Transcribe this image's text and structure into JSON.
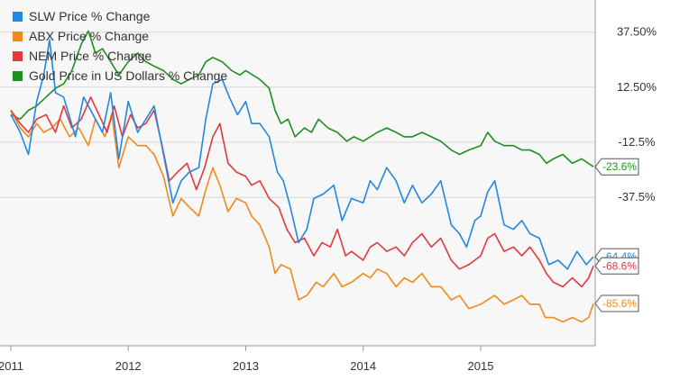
{
  "chart_data": {
    "type": "line",
    "title": "",
    "xlabel": "",
    "ylabel": "",
    "xlim": [
      2011.0,
      2015.96
    ],
    "ylim": [
      -104,
      50
    ],
    "x_ticks": [
      {
        "value": 2011,
        "label": "2011"
      },
      {
        "value": 2012,
        "label": "2012"
      },
      {
        "value": 2013,
        "label": "2013"
      },
      {
        "value": 2014,
        "label": "2014"
      },
      {
        "value": 2015,
        "label": "2015"
      }
    ],
    "y_ticks": [
      {
        "value": 37.5,
        "label": "37.50%"
      },
      {
        "value": 12.5,
        "label": "12.50%"
      },
      {
        "value": -12.5,
        "label": "-12.5%"
      },
      {
        "value": -37.5,
        "label": "-37.5%"
      }
    ],
    "grid": "horizontal",
    "legend_position": "top-left",
    "series": [
      {
        "name": "SLW Price % Change",
        "color": "#2288e0",
        "end_label": "-64.4%",
        "points": [
          [
            2011.0,
            0
          ],
          [
            2011.08,
            -8
          ],
          [
            2011.15,
            -18
          ],
          [
            2011.22,
            6
          ],
          [
            2011.28,
            18
          ],
          [
            2011.33,
            34
          ],
          [
            2011.38,
            10
          ],
          [
            2011.45,
            8
          ],
          [
            2011.55,
            -10
          ],
          [
            2011.62,
            8
          ],
          [
            2011.7,
            0
          ],
          [
            2011.78,
            -8
          ],
          [
            2011.85,
            10
          ],
          [
            2011.92,
            -20
          ],
          [
            2012.0,
            6
          ],
          [
            2012.08,
            -8
          ],
          [
            2012.15,
            -2
          ],
          [
            2012.22,
            4
          ],
          [
            2012.3,
            -18
          ],
          [
            2012.38,
            -40
          ],
          [
            2012.45,
            -30
          ],
          [
            2012.52,
            -26
          ],
          [
            2012.6,
            -24
          ],
          [
            2012.66,
            -2
          ],
          [
            2012.72,
            14
          ],
          [
            2012.8,
            16
          ],
          [
            2012.86,
            8
          ],
          [
            2012.93,
            0
          ],
          [
            2013.0,
            6
          ],
          [
            2013.05,
            -4
          ],
          [
            2013.12,
            -4
          ],
          [
            2013.2,
            -10
          ],
          [
            2013.27,
            -26
          ],
          [
            2013.32,
            -30
          ],
          [
            2013.38,
            -42
          ],
          [
            2013.45,
            -58
          ],
          [
            2013.52,
            -52
          ],
          [
            2013.58,
            -38
          ],
          [
            2013.66,
            -36
          ],
          [
            2013.75,
            -32
          ],
          [
            2013.82,
            -48
          ],
          [
            2013.9,
            -38
          ],
          [
            2014.0,
            -40
          ],
          [
            2014.06,
            -30
          ],
          [
            2014.12,
            -34
          ],
          [
            2014.2,
            -24
          ],
          [
            2014.28,
            -30
          ],
          [
            2014.35,
            -40
          ],
          [
            2014.42,
            -32
          ],
          [
            2014.5,
            -40
          ],
          [
            2014.58,
            -36
          ],
          [
            2014.66,
            -30
          ],
          [
            2014.75,
            -50
          ],
          [
            2014.82,
            -54
          ],
          [
            2014.88,
            -60
          ],
          [
            2014.95,
            -48
          ],
          [
            2015.0,
            -46
          ],
          [
            2015.06,
            -35
          ],
          [
            2015.12,
            -30
          ],
          [
            2015.2,
            -50
          ],
          [
            2015.28,
            -52
          ],
          [
            2015.35,
            -48
          ],
          [
            2015.42,
            -54
          ],
          [
            2015.5,
            -56
          ],
          [
            2015.58,
            -68
          ],
          [
            2015.66,
            -66
          ],
          [
            2015.74,
            -70
          ],
          [
            2015.82,
            -62
          ],
          [
            2015.9,
            -68
          ],
          [
            2015.96,
            -64.4
          ]
        ]
      },
      {
        "name": "ABX Price % Change",
        "color": "#f08a1c",
        "end_label": "-85.6%",
        "points": [
          [
            2011.0,
            2
          ],
          [
            2011.08,
            -6
          ],
          [
            2011.15,
            -10
          ],
          [
            2011.22,
            -4
          ],
          [
            2011.28,
            -8
          ],
          [
            2011.35,
            -6
          ],
          [
            2011.42,
            -2
          ],
          [
            2011.5,
            -10
          ],
          [
            2011.58,
            -6
          ],
          [
            2011.66,
            -14
          ],
          [
            2011.72,
            -2
          ],
          [
            2011.8,
            -10
          ],
          [
            2011.86,
            0
          ],
          [
            2011.92,
            -24
          ],
          [
            2012.0,
            -10
          ],
          [
            2012.08,
            -14
          ],
          [
            2012.15,
            -14
          ],
          [
            2012.22,
            -18
          ],
          [
            2012.3,
            -28
          ],
          [
            2012.38,
            -46
          ],
          [
            2012.45,
            -38
          ],
          [
            2012.52,
            -42
          ],
          [
            2012.6,
            -46
          ],
          [
            2012.66,
            -34
          ],
          [
            2012.72,
            -24
          ],
          [
            2012.78,
            -32
          ],
          [
            2012.85,
            -44
          ],
          [
            2012.92,
            -38
          ],
          [
            2013.0,
            -40
          ],
          [
            2013.05,
            -46
          ],
          [
            2013.12,
            -50
          ],
          [
            2013.2,
            -60
          ],
          [
            2013.25,
            -72
          ],
          [
            2013.3,
            -68
          ],
          [
            2013.38,
            -70
          ],
          [
            2013.45,
            -84
          ],
          [
            2013.52,
            -82
          ],
          [
            2013.6,
            -76
          ],
          [
            2013.66,
            -78
          ],
          [
            2013.75,
            -72
          ],
          [
            2013.82,
            -78
          ],
          [
            2013.9,
            -76
          ],
          [
            2014.0,
            -72
          ],
          [
            2014.06,
            -74
          ],
          [
            2014.12,
            -70
          ],
          [
            2014.2,
            -72
          ],
          [
            2014.28,
            -78
          ],
          [
            2014.35,
            -74
          ],
          [
            2014.42,
            -76
          ],
          [
            2014.5,
            -72
          ],
          [
            2014.58,
            -78
          ],
          [
            2014.66,
            -78
          ],
          [
            2014.75,
            -84
          ],
          [
            2014.82,
            -82
          ],
          [
            2014.9,
            -88
          ],
          [
            2015.0,
            -86
          ],
          [
            2015.06,
            -84
          ],
          [
            2015.12,
            -82
          ],
          [
            2015.2,
            -86
          ],
          [
            2015.28,
            -84
          ],
          [
            2015.35,
            -82
          ],
          [
            2015.42,
            -86
          ],
          [
            2015.5,
            -86
          ],
          [
            2015.55,
            -92
          ],
          [
            2015.62,
            -92
          ],
          [
            2015.7,
            -94
          ],
          [
            2015.78,
            -92
          ],
          [
            2015.86,
            -94
          ],
          [
            2015.92,
            -92
          ],
          [
            2015.96,
            -85.6
          ]
        ]
      },
      {
        "name": "NEM Price % Change",
        "color": "#e0393e",
        "end_label": "-68.6%",
        "points": [
          [
            2011.0,
            2
          ],
          [
            2011.08,
            -4
          ],
          [
            2011.15,
            -8
          ],
          [
            2011.22,
            -2
          ],
          [
            2011.3,
            0
          ],
          [
            2011.38,
            -8
          ],
          [
            2011.45,
            4
          ],
          [
            2011.52,
            -6
          ],
          [
            2011.6,
            -2
          ],
          [
            2011.68,
            8
          ],
          [
            2011.75,
            0
          ],
          [
            2011.82,
            -8
          ],
          [
            2011.88,
            4
          ],
          [
            2011.95,
            -10
          ],
          [
            2012.02,
            0
          ],
          [
            2012.08,
            -6
          ],
          [
            2012.15,
            -4
          ],
          [
            2012.22,
            2
          ],
          [
            2012.28,
            -12
          ],
          [
            2012.35,
            -30
          ],
          [
            2012.42,
            -26
          ],
          [
            2012.5,
            -22
          ],
          [
            2012.58,
            -34
          ],
          [
            2012.65,
            -24
          ],
          [
            2012.72,
            -10
          ],
          [
            2012.78,
            -4
          ],
          [
            2012.85,
            -22
          ],
          [
            2012.92,
            -26
          ],
          [
            2013.0,
            -28
          ],
          [
            2013.05,
            -32
          ],
          [
            2013.12,
            -30
          ],
          [
            2013.2,
            -38
          ],
          [
            2013.28,
            -42
          ],
          [
            2013.35,
            -52
          ],
          [
            2013.42,
            -58
          ],
          [
            2013.5,
            -56
          ],
          [
            2013.58,
            -64
          ],
          [
            2013.65,
            -58
          ],
          [
            2013.72,
            -60
          ],
          [
            2013.78,
            -52
          ],
          [
            2013.85,
            -64
          ],
          [
            2013.9,
            -62
          ],
          [
            2014.0,
            -66
          ],
          [
            2014.06,
            -60
          ],
          [
            2014.12,
            -58
          ],
          [
            2014.2,
            -62
          ],
          [
            2014.28,
            -60
          ],
          [
            2014.35,
            -64
          ],
          [
            2014.42,
            -58
          ],
          [
            2014.5,
            -54
          ],
          [
            2014.58,
            -60
          ],
          [
            2014.66,
            -56
          ],
          [
            2014.75,
            -66
          ],
          [
            2014.82,
            -70
          ],
          [
            2014.9,
            -68
          ],
          [
            2015.0,
            -64
          ],
          [
            2015.06,
            -56
          ],
          [
            2015.12,
            -54
          ],
          [
            2015.2,
            -62
          ],
          [
            2015.28,
            -60
          ],
          [
            2015.35,
            -64
          ],
          [
            2015.42,
            -60
          ],
          [
            2015.5,
            -66
          ],
          [
            2015.56,
            -72
          ],
          [
            2015.62,
            -76
          ],
          [
            2015.7,
            -78
          ],
          [
            2015.78,
            -74
          ],
          [
            2015.86,
            -78
          ],
          [
            2015.92,
            -74
          ],
          [
            2015.96,
            -68.6
          ]
        ]
      },
      {
        "name": "Gold Price in US Dollars % Change",
        "color": "#1f8f1f",
        "end_label": "-23.6%",
        "points": [
          [
            2011.0,
            0
          ],
          [
            2011.08,
            -2
          ],
          [
            2011.15,
            2
          ],
          [
            2011.22,
            4
          ],
          [
            2011.3,
            8
          ],
          [
            2011.38,
            12
          ],
          [
            2011.45,
            14
          ],
          [
            2011.52,
            20
          ],
          [
            2011.6,
            32
          ],
          [
            2011.66,
            38
          ],
          [
            2011.72,
            28
          ],
          [
            2011.78,
            30
          ],
          [
            2011.85,
            24
          ],
          [
            2011.92,
            18
          ],
          [
            2012.0,
            24
          ],
          [
            2012.08,
            28
          ],
          [
            2012.15,
            24
          ],
          [
            2012.22,
            22
          ],
          [
            2012.3,
            20
          ],
          [
            2012.38,
            16
          ],
          [
            2012.45,
            14
          ],
          [
            2012.52,
            16
          ],
          [
            2012.6,
            18
          ],
          [
            2012.66,
            24
          ],
          [
            2012.72,
            26
          ],
          [
            2012.8,
            24
          ],
          [
            2012.88,
            20
          ],
          [
            2012.95,
            18
          ],
          [
            2013.0,
            20
          ],
          [
            2013.06,
            18
          ],
          [
            2013.12,
            16
          ],
          [
            2013.2,
            12
          ],
          [
            2013.25,
            2
          ],
          [
            2013.3,
            -4
          ],
          [
            2013.36,
            -2
          ],
          [
            2013.42,
            -10
          ],
          [
            2013.5,
            -6
          ],
          [
            2013.56,
            -8
          ],
          [
            2013.62,
            -2
          ],
          [
            2013.7,
            -6
          ],
          [
            2013.78,
            -8
          ],
          [
            2013.86,
            -12
          ],
          [
            2013.92,
            -10
          ],
          [
            2014.0,
            -12
          ],
          [
            2014.06,
            -10
          ],
          [
            2014.12,
            -8
          ],
          [
            2014.2,
            -6
          ],
          [
            2014.28,
            -8
          ],
          [
            2014.35,
            -10
          ],
          [
            2014.42,
            -10
          ],
          [
            2014.5,
            -8
          ],
          [
            2014.58,
            -10
          ],
          [
            2014.66,
            -12
          ],
          [
            2014.75,
            -16
          ],
          [
            2014.82,
            -18
          ],
          [
            2014.9,
            -16
          ],
          [
            2015.0,
            -14
          ],
          [
            2015.06,
            -8
          ],
          [
            2015.12,
            -12
          ],
          [
            2015.2,
            -14
          ],
          [
            2015.28,
            -14
          ],
          [
            2015.35,
            -16
          ],
          [
            2015.42,
            -16
          ],
          [
            2015.5,
            -18
          ],
          [
            2015.56,
            -22
          ],
          [
            2015.62,
            -20
          ],
          [
            2015.7,
            -18
          ],
          [
            2015.78,
            -22
          ],
          [
            2015.86,
            -20
          ],
          [
            2015.96,
            -23.6
          ]
        ]
      }
    ]
  }
}
